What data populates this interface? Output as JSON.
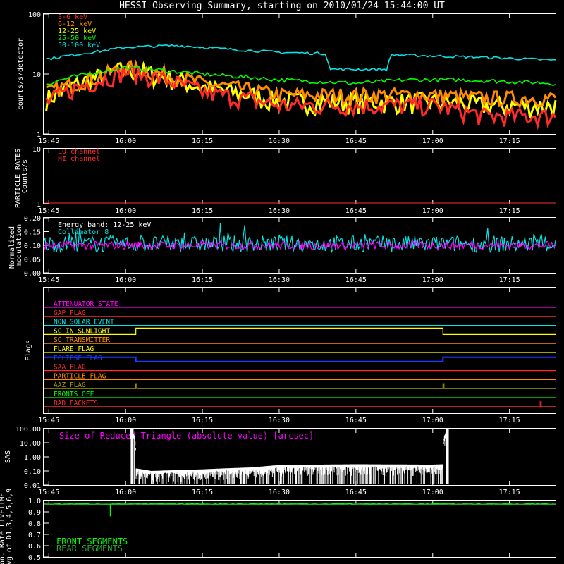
{
  "title": "HESSI Observing Summary, starting on 2010/01/24 15:44:00 UT",
  "time_axis": {
    "range": [
      "15:44",
      "17:24"
    ],
    "ticks": [
      "15:45",
      "16:00",
      "16:15",
      "16:30",
      "16:45",
      "17:00",
      "17:15"
    ]
  },
  "colors": {
    "background": "#000000",
    "axes": "#ffffff",
    "red": "#ff2a2a",
    "orange": "#ff8c00",
    "yellow": "#ffff00",
    "green": "#00ff00",
    "cyan": "#00e5e5",
    "magenta": "#ff00ff",
    "blue": "#1a3cff",
    "dark_green": "#2aa52a",
    "olive": "#a59a00"
  },
  "chart_data": [
    {
      "type": "line",
      "ylabel": "counts/s/detector",
      "yscale": "log",
      "ylim": [
        1,
        100
      ],
      "ytick_labels": [
        "1",
        "10",
        "100"
      ],
      "legend": "top-left",
      "series": [
        {
          "name": "3-6 keV",
          "color": "#ff2a2a",
          "x": [
            "15:45",
            "15:55",
            "16:00",
            "16:05",
            "16:15",
            "16:30",
            "16:45",
            "17:00",
            "17:10",
            "17:20",
            "17:24"
          ],
          "values": [
            3.5,
            8,
            11,
            9,
            5,
            3,
            3,
            3,
            2,
            2,
            2
          ]
        },
        {
          "name": "6-12 keV",
          "color": "#ff8c00",
          "x": [
            "15:45",
            "15:55",
            "16:00",
            "16:05",
            "16:15",
            "16:30",
            "16:45",
            "17:00",
            "17:10",
            "17:20",
            "17:24"
          ],
          "values": [
            5,
            9,
            13,
            11,
            7,
            4.5,
            4.5,
            4.5,
            4,
            4,
            4
          ]
        },
        {
          "name": "12-25 keV",
          "color": "#ffff00",
          "x": [
            "15:45",
            "15:55",
            "16:00",
            "16:05",
            "16:15",
            "16:30",
            "16:45",
            "17:00",
            "17:10",
            "17:20",
            "17:24"
          ],
          "values": [
            4,
            9,
            12,
            10,
            6,
            3.5,
            3.5,
            3.5,
            3,
            3,
            3
          ]
        },
        {
          "name": "25-50 keV",
          "color": "#00ff00",
          "x": [
            "15:45",
            "15:55",
            "16:00",
            "16:05",
            "16:15",
            "16:30",
            "16:45",
            "16:55",
            "17:05",
            "17:15",
            "17:24"
          ],
          "values": [
            7,
            11,
            13,
            12,
            10,
            8,
            7,
            8,
            8,
            7.5,
            7
          ]
        },
        {
          "name": "50-100 keV",
          "color": "#00e5e5",
          "x": [
            "15:45",
            "15:55",
            "16:00",
            "16:10",
            "16:20",
            "16:30",
            "16:39",
            "16:40",
            "16:51",
            "16:52",
            "17:00",
            "17:10",
            "17:24"
          ],
          "values": [
            18,
            24,
            28,
            30,
            26,
            23,
            22,
            12,
            12,
            21,
            20,
            19,
            17
          ]
        }
      ]
    },
    {
      "type": "line",
      "ylabel": "PARTICLE RATES Counts/s",
      "yscale": "log",
      "ylim": [
        1,
        10
      ],
      "ytick_labels": [
        "1",
        "10"
      ],
      "legend": "top-left",
      "series": [
        {
          "name": "LO channel",
          "color": "#ff2a2a",
          "x": [
            "15:44",
            "17:24"
          ],
          "values": [
            1,
            1
          ]
        },
        {
          "name": "HI channel",
          "color": "#ff2a2a",
          "x": [
            "15:44",
            "17:24"
          ],
          "values": [
            1,
            1
          ]
        }
      ]
    },
    {
      "type": "line",
      "ylabel": "Normalized modulation",
      "ylim": [
        0,
        0.2
      ],
      "ytick_labels": [
        "0.00",
        "0.05",
        "0.10",
        "0.15",
        "0.20"
      ],
      "annotation": "Energy band: 12-25 keV",
      "legend": "top-left",
      "series": [
        {
          "name": "Collimator 8",
          "color": "#00e5e5",
          "mean": 0.105,
          "spread": 0.03
        },
        {
          "name": "",
          "color": "#ff00ff",
          "mean": 0.1,
          "spread": 0.015
        }
      ]
    },
    {
      "type": "line",
      "ylabel": "Flags",
      "series": [
        {
          "name": "ATTENUATOR STATE",
          "color": "#ff00ff",
          "state": "constant"
        },
        {
          "name": "GAP FLAG",
          "color": "#ff2a2a",
          "state": "constant"
        },
        {
          "name": "NON SOLAR EVENT",
          "color": "#00e5e5",
          "state": "constant"
        },
        {
          "name": "SC IN SUNLIGHT",
          "color": "#ffff00",
          "state": "high",
          "on": [
            "16:02",
            "17:02"
          ]
        },
        {
          "name": "SC TRANSMITTER",
          "color": "#ff8c00",
          "state": "constant"
        },
        {
          "name": "FLARE FLAG",
          "color": "#ffff00",
          "state": "constant"
        },
        {
          "name": "ECLIPSE FLAG",
          "color": "#1a3cff",
          "state": "low",
          "off": [
            "16:02",
            "17:02"
          ]
        },
        {
          "name": "SAA FLAG",
          "color": "#ff2a2a",
          "state": "constant"
        },
        {
          "name": "PARTICLE FLAG",
          "color": "#ff8c00",
          "state": "constant"
        },
        {
          "name": "AAZ FLAG",
          "color": "#a59a00",
          "state": "spikes",
          "at": [
            "16:02",
            "17:02"
          ]
        },
        {
          "name": "FRONTS OFF",
          "color": "#00ff00",
          "state": "constant"
        },
        {
          "name": "BAD PACKETS",
          "color": "#ff2a2a",
          "state": "spikes",
          "at": [
            "17:21"
          ]
        }
      ]
    },
    {
      "type": "line",
      "ylabel": "SAS",
      "yscale": "log",
      "ylim": [
        0.01,
        100
      ],
      "ytick_labels": [
        "0.01",
        "0.10",
        "1.00",
        "10.00",
        "100.00"
      ],
      "annotation": "Size of Reduced Triangle (absolute value) [arcsec]",
      "series": [
        {
          "name": "",
          "color": "#ffffff",
          "x": [
            "16:01",
            "16:02",
            "16:05",
            "16:15",
            "16:25",
            "16:30",
            "16:45",
            "17:00",
            "17:02",
            "17:03"
          ],
          "values": [
            100,
            0.15,
            0.1,
            0.13,
            0.18,
            0.26,
            0.3,
            0.28,
            0.3,
            100
          ]
        }
      ]
    },
    {
      "type": "line",
      "ylabel": "Mon. Rate LIVETIME avg of D1,3,4,5,6,9",
      "ylim": [
        0.5,
        1.0
      ],
      "ytick_labels": [
        "0.5",
        "0.6",
        "0.7",
        "0.8",
        "0.9",
        "1.0"
      ],
      "legend": "bottom-left",
      "series": [
        {
          "name": "FRONT SEGMENTS",
          "color": "#00ff00",
          "x": [
            "15:44",
            "17:24"
          ],
          "values": [
            0.97,
            0.97
          ]
        },
        {
          "name": "REAR SEGMENTS",
          "color": "#2aa52a",
          "x": [
            "15:44",
            "17:24"
          ],
          "values": [
            0.965,
            0.965
          ]
        }
      ]
    }
  ]
}
